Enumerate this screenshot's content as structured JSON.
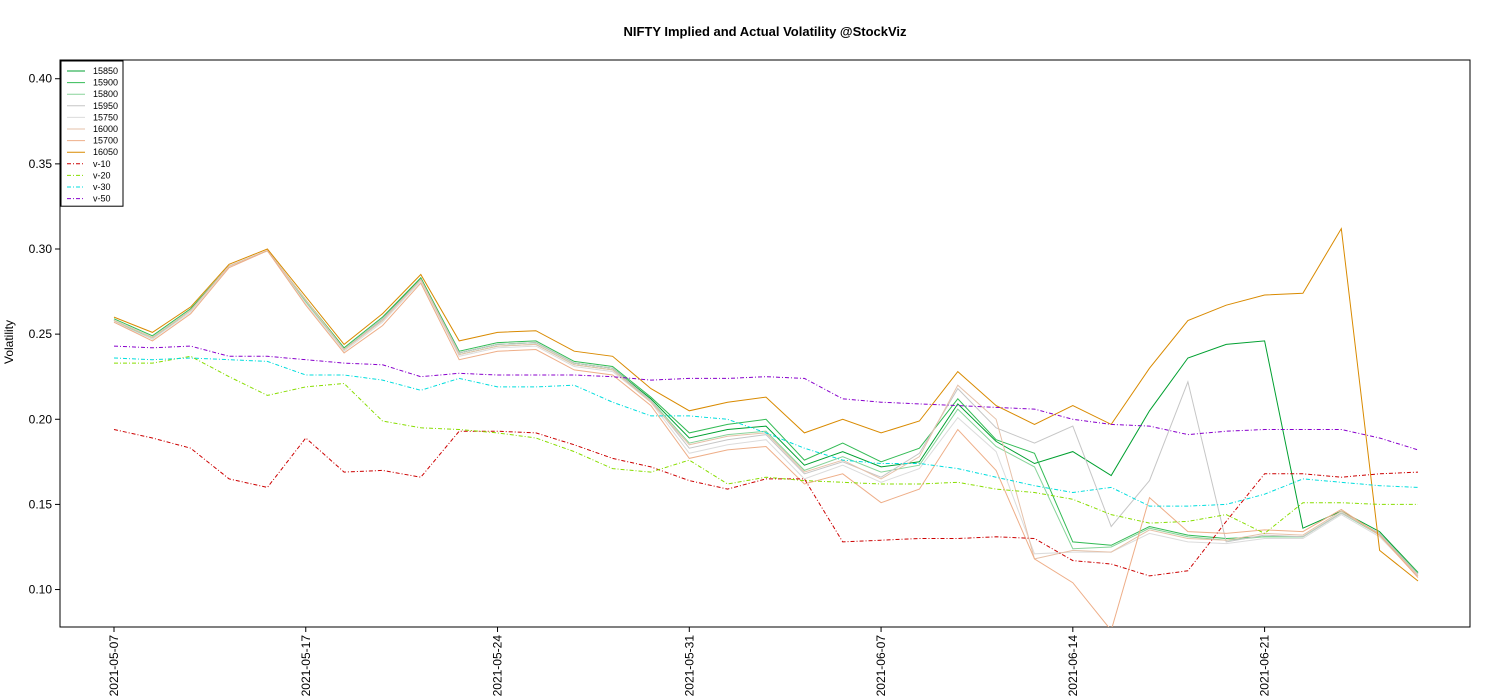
{
  "chart_data": {
    "type": "line",
    "title": "NIFTY Implied and Actual Volatility @StockViz",
    "xlabel": "",
    "ylabel": "Volatility",
    "ylim": [
      0.078,
      0.411
    ],
    "yticks": [
      "0.10",
      "0.15",
      "0.20",
      "0.25",
      "0.30",
      "0.35",
      "0.40"
    ],
    "xticks": [
      "2021-05-07",
      "2021-05-17",
      "2021-05-24",
      "2021-05-31",
      "2021-06-07",
      "2021-06-14",
      "2021-06-21"
    ],
    "legend_position": "top-left",
    "grid": false,
    "dates": [
      "2021-05-07",
      "2021-05-10",
      "2021-05-11",
      "2021-05-12",
      "2021-05-14",
      "2021-05-17",
      "2021-05-18",
      "2021-05-19",
      "2021-05-20",
      "2021-05-21",
      "2021-05-24",
      "2021-05-25",
      "2021-05-26",
      "2021-05-27",
      "2021-05-28",
      "2021-05-31",
      "2021-06-01",
      "2021-06-02",
      "2021-06-03",
      "2021-06-04",
      "2021-06-07",
      "2021-06-08",
      "2021-06-09",
      "2021-06-10",
      "2021-06-11",
      "2021-06-14",
      "2021-06-15",
      "2021-06-16",
      "2021-06-17",
      "2021-06-18",
      "2021-06-21",
      "2021-06-22",
      "2021-06-23",
      "2021-06-24",
      "2021-06-25"
    ],
    "series": [
      {
        "name": "15850",
        "color": "#00a030",
        "dash": "",
        "values": [
          0.258,
          0.248,
          0.264,
          0.29,
          0.299,
          0.27,
          0.241,
          0.259,
          0.283,
          0.239,
          0.244,
          0.245,
          0.233,
          0.23,
          0.212,
          0.189,
          0.194,
          0.196,
          0.173,
          0.181,
          0.172,
          0.175,
          0.209,
          0.187,
          0.174,
          0.181,
          0.167,
          0.205,
          0.236,
          0.244,
          0.246,
          0.136,
          0.146,
          0.134,
          0.11
        ]
      },
      {
        "name": "15900",
        "color": "#33bb55",
        "dash": "",
        "values": [
          0.259,
          0.249,
          0.265,
          0.29,
          0.299,
          0.27,
          0.242,
          0.26,
          0.283,
          0.24,
          0.245,
          0.246,
          0.234,
          0.231,
          0.213,
          0.192,
          0.197,
          0.2,
          0.176,
          0.186,
          0.175,
          0.183,
          0.212,
          0.188,
          0.18,
          0.128,
          0.126,
          0.137,
          0.132,
          0.13,
          0.131,
          0.131,
          0.145,
          0.133,
          0.11
        ]
      },
      {
        "name": "15800",
        "color": "#88d49a",
        "dash": "",
        "values": [
          0.258,
          0.247,
          0.264,
          0.29,
          0.299,
          0.269,
          0.241,
          0.258,
          0.282,
          0.238,
          0.243,
          0.244,
          0.232,
          0.229,
          0.211,
          0.186,
          0.191,
          0.193,
          0.17,
          0.178,
          0.169,
          0.173,
          0.206,
          0.184,
          0.172,
          0.124,
          0.125,
          0.136,
          0.131,
          0.129,
          0.131,
          0.131,
          0.145,
          0.132,
          0.109
        ]
      },
      {
        "name": "15950",
        "color": "#c6c6c6",
        "dash": "",
        "values": [
          0.258,
          0.248,
          0.264,
          0.29,
          0.299,
          0.27,
          0.241,
          0.259,
          0.282,
          0.239,
          0.244,
          0.245,
          0.233,
          0.23,
          0.211,
          0.183,
          0.188,
          0.191,
          0.168,
          0.175,
          0.166,
          0.18,
          0.218,
          0.195,
          0.186,
          0.196,
          0.137,
          0.164,
          0.222,
          0.128,
          0.132,
          0.131,
          0.145,
          0.133,
          0.109
        ]
      },
      {
        "name": "15750",
        "color": "#dcdcdc",
        "dash": "",
        "values": [
          0.257,
          0.247,
          0.263,
          0.29,
          0.299,
          0.268,
          0.24,
          0.257,
          0.281,
          0.237,
          0.242,
          0.243,
          0.231,
          0.228,
          0.21,
          0.18,
          0.185,
          0.188,
          0.165,
          0.173,
          0.163,
          0.171,
          0.201,
          0.181,
          0.121,
          0.122,
          0.122,
          0.133,
          0.128,
          0.127,
          0.13,
          0.13,
          0.144,
          0.131,
          0.108
        ]
      },
      {
        "name": "16000",
        "color": "#e6c2aa",
        "dash": "",
        "values": [
          0.258,
          0.248,
          0.264,
          0.29,
          0.299,
          0.27,
          0.241,
          0.258,
          0.282,
          0.238,
          0.243,
          0.244,
          0.232,
          0.229,
          0.21,
          0.185,
          0.19,
          0.192,
          0.169,
          0.176,
          0.165,
          0.178,
          0.22,
          0.2,
          0.118,
          0.123,
          0.122,
          0.135,
          0.13,
          0.129,
          0.133,
          0.132,
          0.146,
          0.132,
          0.108
        ]
      },
      {
        "name": "15700",
        "color": "#eeae88",
        "dash": "",
        "values": [
          0.257,
          0.246,
          0.262,
          0.289,
          0.299,
          0.267,
          0.239,
          0.255,
          0.28,
          0.235,
          0.24,
          0.241,
          0.229,
          0.226,
          0.208,
          0.177,
          0.182,
          0.184,
          0.162,
          0.168,
          0.151,
          0.159,
          0.194,
          0.17,
          0.118,
          0.104,
          0.076,
          0.154,
          0.134,
          0.133,
          0.135,
          0.134,
          0.147,
          0.132,
          0.107
        ]
      },
      {
        "name": "16050",
        "color": "#d98a00",
        "dash": "",
        "values": [
          0.26,
          0.251,
          0.266,
          0.291,
          0.3,
          0.272,
          0.244,
          0.262,
          0.285,
          0.246,
          0.251,
          0.252,
          0.24,
          0.237,
          0.218,
          0.205,
          0.21,
          0.213,
          0.192,
          0.2,
          0.192,
          0.199,
          0.228,
          0.208,
          0.197,
          0.208,
          0.197,
          0.23,
          0.258,
          0.267,
          0.273,
          0.274,
          0.312,
          0.123,
          0.105
        ]
      },
      {
        "name": "v-10",
        "color": "#cc0000",
        "dash": "4,2,1,2",
        "values": [
          0.194,
          0.189,
          0.183,
          0.165,
          0.16,
          0.189,
          0.169,
          0.17,
          0.166,
          0.193,
          0.193,
          0.192,
          0.185,
          0.177,
          0.172,
          0.164,
          0.159,
          0.165,
          0.165,
          0.128,
          0.129,
          0.13,
          0.13,
          0.131,
          0.13,
          0.117,
          0.115,
          0.108,
          0.111,
          0.14,
          0.168,
          0.168,
          0.166,
          0.168,
          0.169
        ]
      },
      {
        "name": "v-20",
        "color": "#88dd00",
        "dash": "4,2,1,2",
        "values": [
          0.233,
          0.233,
          0.237,
          0.225,
          0.214,
          0.219,
          0.221,
          0.199,
          0.195,
          0.194,
          0.192,
          0.189,
          0.181,
          0.171,
          0.169,
          0.176,
          0.162,
          0.166,
          0.164,
          0.163,
          0.162,
          0.162,
          0.163,
          0.159,
          0.157,
          0.153,
          0.144,
          0.139,
          0.14,
          0.144,
          0.133,
          0.151,
          0.151,
          0.15,
          0.15
        ]
      },
      {
        "name": "v-30",
        "color": "#00dddd",
        "dash": "4,2,1,2",
        "values": [
          0.236,
          0.235,
          0.236,
          0.235,
          0.234,
          0.226,
          0.226,
          0.223,
          0.217,
          0.224,
          0.219,
          0.219,
          0.22,
          0.21,
          0.202,
          0.202,
          0.2,
          0.192,
          0.183,
          0.176,
          0.174,
          0.174,
          0.171,
          0.166,
          0.161,
          0.157,
          0.16,
          0.149,
          0.149,
          0.15,
          0.156,
          0.165,
          0.163,
          0.161,
          0.16
        ]
      },
      {
        "name": "v-50",
        "color": "#8800cc",
        "dash": "4,2,1,2",
        "values": [
          0.243,
          0.242,
          0.243,
          0.237,
          0.237,
          0.235,
          0.233,
          0.232,
          0.225,
          0.227,
          0.226,
          0.226,
          0.226,
          0.225,
          0.223,
          0.224,
          0.224,
          0.225,
          0.224,
          0.212,
          0.21,
          0.209,
          0.208,
          0.207,
          0.206,
          0.2,
          0.197,
          0.196,
          0.191,
          0.193,
          0.194,
          0.194,
          0.194,
          0.189,
          0.182
        ]
      }
    ]
  }
}
